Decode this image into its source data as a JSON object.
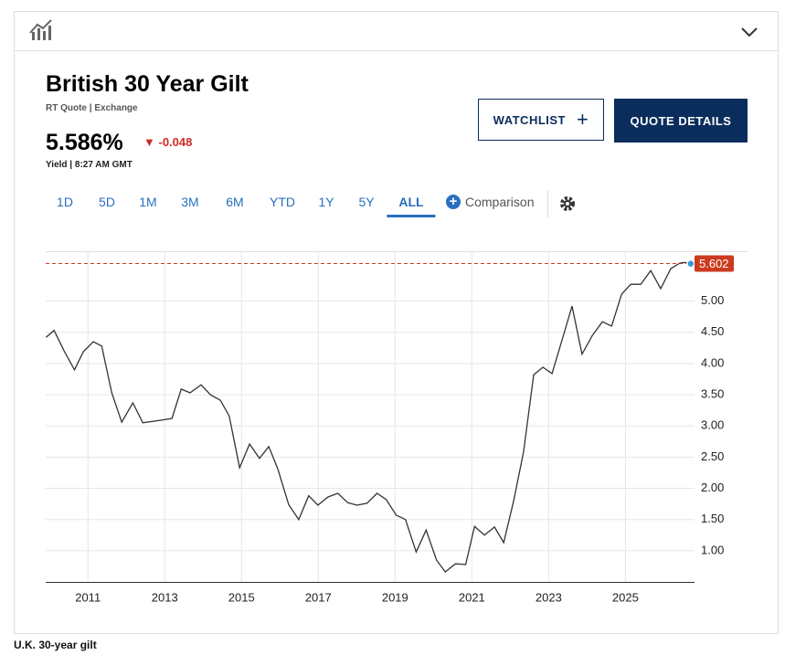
{
  "quote": {
    "title": "British 30 Year Gilt",
    "source": "RT Quote | Exchange",
    "price": "5.586%",
    "change": "-0.048",
    "meta": "Yield | 8:27 AM GMT"
  },
  "buttons": [
    "WATCHLIST",
    "QUOTE DETAILS"
  ],
  "ranges": [
    "1D",
    "5D",
    "1M",
    "3M",
    "6M",
    "YTD",
    "1Y",
    "5Y",
    "ALL"
  ],
  "comparison": "Comparison",
  "caption": "U.K. 30-year gilt",
  "chart_data": {
    "type": "line",
    "color": "#333333",
    "grid": true,
    "x": [
      2009.91,
      2010.12,
      2010.39,
      2010.65,
      2010.88,
      2011.14,
      2011.36,
      2011.62,
      2011.88,
      2012.17,
      2012.43,
      2012.88,
      2013.19,
      2013.43,
      2013.66,
      2013.95,
      2014.19,
      2014.45,
      2014.68,
      2014.95,
      2015.21,
      2015.47,
      2015.71,
      2015.94,
      2016.23,
      2016.49,
      2016.75,
      2016.99,
      2017.25,
      2017.51,
      2017.77,
      2018.01,
      2018.27,
      2018.53,
      2018.77,
      2019.03,
      2019.27,
      2019.55,
      2019.81,
      2020.08,
      2020.31,
      2020.57,
      2020.84,
      2021.07,
      2021.33,
      2021.59,
      2021.83,
      2022.09,
      2022.35,
      2022.61,
      2022.85,
      2023.09,
      2023.35,
      2023.61,
      2023.87,
      2024.14,
      2024.4,
      2024.64,
      2024.9,
      2025.14,
      2025.4,
      2025.66,
      2025.92,
      2026.18,
      2026.42,
      2026.56,
      2026.7
    ],
    "values": [
      4.42,
      4.53,
      4.19,
      3.9,
      4.19,
      4.35,
      4.28,
      3.53,
      3.06,
      3.37,
      3.05,
      3.09,
      3.12,
      3.59,
      3.53,
      3.66,
      3.5,
      3.41,
      3.16,
      2.33,
      2.71,
      2.48,
      2.67,
      2.32,
      1.74,
      1.5,
      1.88,
      1.73,
      1.86,
      1.92,
      1.77,
      1.73,
      1.76,
      1.92,
      1.82,
      1.57,
      1.5,
      0.98,
      1.33,
      0.85,
      0.66,
      0.79,
      0.78,
      1.39,
      1.25,
      1.38,
      1.13,
      1.8,
      2.59,
      3.82,
      3.94,
      3.84,
      4.38,
      4.92,
      4.15,
      4.45,
      4.67,
      4.6,
      5.11,
      5.27,
      5.27,
      5.49,
      5.2,
      5.52,
      5.61,
      5.62,
      5.6
    ],
    "last_value": 5.602,
    "last_color": "#cc3a1f",
    "xlim": [
      2009.9,
      2026.8
    ],
    "xticks": [
      2011,
      2013,
      2015,
      2017,
      2019,
      2021,
      2023,
      2025
    ],
    "ylim": [
      0.5,
      5.8
    ],
    "yticks": [
      {
        "value": 1,
        "label": "1.00"
      },
      {
        "value": 1.5,
        "label": "1.50"
      },
      {
        "value": 2,
        "label": "2.00"
      },
      {
        "value": 2.5,
        "label": "2.50"
      },
      {
        "value": 3,
        "label": "3.00"
      },
      {
        "value": 3.5,
        "label": "3.50"
      },
      {
        "value": 4,
        "label": "4.00"
      },
      {
        "value": 4.5,
        "label": "4.50"
      },
      {
        "value": 5,
        "label": "5.00"
      }
    ]
  }
}
